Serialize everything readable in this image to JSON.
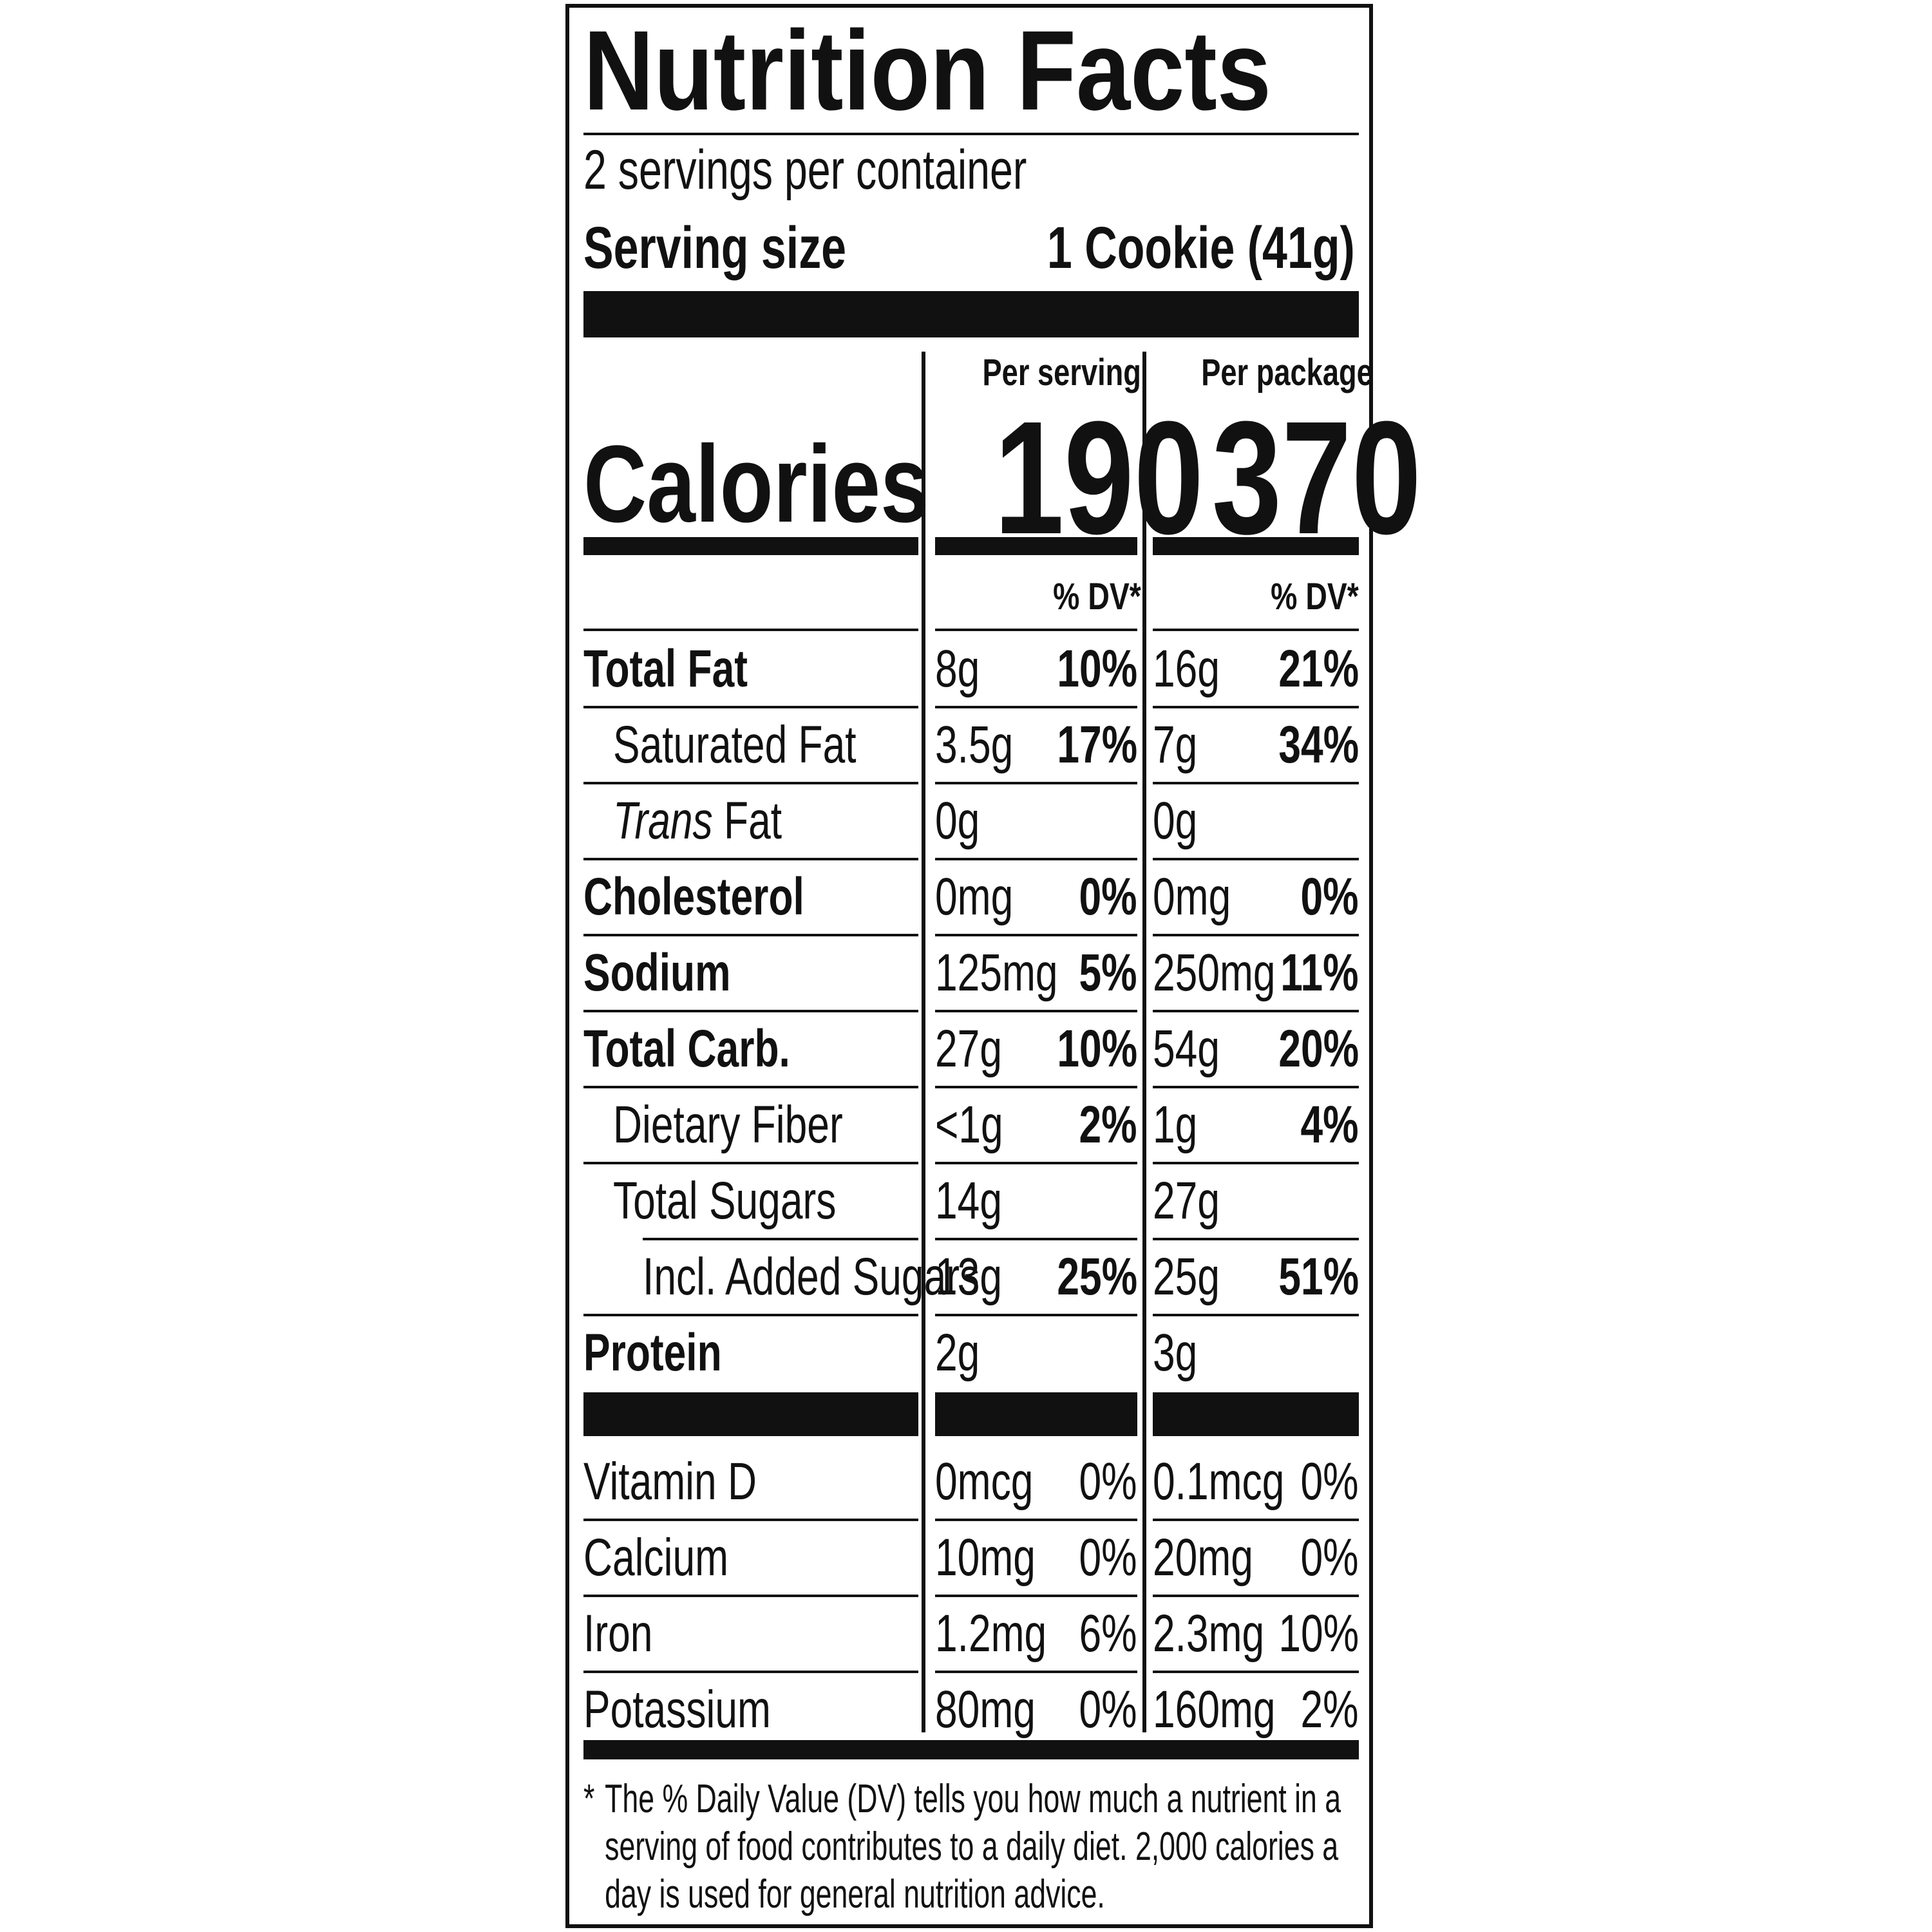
{
  "title": "Nutrition Facts",
  "servings_per_container": "2 servings per container",
  "serving_size": {
    "label": "Serving size",
    "value": "1 Cookie (41g)"
  },
  "columns": {
    "per_serving": {
      "header": "Per serving",
      "calories": "190",
      "dv_header": "% DV*"
    },
    "per_package": {
      "header": "Per package",
      "calories": "370",
      "dv_header": "% DV*"
    }
  },
  "calories_label": "Calories",
  "nutrients": [
    {
      "label": "Total Fat",
      "bold": true,
      "indent": 0,
      "serving_amount": "8g",
      "serving_dv": "10%",
      "package_amount": "16g",
      "package_dv": "21%"
    },
    {
      "label": "Saturated Fat",
      "bold": false,
      "indent": 1,
      "serving_amount": "3.5g",
      "serving_dv": "17%",
      "package_amount": "7g",
      "package_dv": "34%"
    },
    {
      "label_italic": "Trans",
      "label": " Fat",
      "bold": false,
      "indent": 1,
      "serving_amount": "0g",
      "serving_dv": "",
      "package_amount": "0g",
      "package_dv": ""
    },
    {
      "label": "Cholesterol",
      "bold": true,
      "indent": 0,
      "serving_amount": "0mg",
      "serving_dv": "0%",
      "package_amount": "0mg",
      "package_dv": "0%"
    },
    {
      "label": "Sodium",
      "bold": true,
      "indent": 0,
      "serving_amount": "125mg",
      "serving_dv": "5%",
      "package_amount": "250mg",
      "package_dv": "11%"
    },
    {
      "label": "Total Carb.",
      "bold": true,
      "indent": 0,
      "serving_amount": "27g",
      "serving_dv": "10%",
      "package_amount": "54g",
      "package_dv": "20%"
    },
    {
      "label": "Dietary Fiber",
      "bold": false,
      "indent": 1,
      "serving_amount": "<1g",
      "serving_dv": "2%",
      "package_amount": "1g",
      "package_dv": "4%"
    },
    {
      "label": "Total Sugars",
      "bold": false,
      "indent": 1,
      "serving_amount": "14g",
      "serving_dv": "",
      "package_amount": "27g",
      "package_dv": ""
    },
    {
      "label": "Incl. Added Sugars",
      "bold": false,
      "indent": 2,
      "serving_amount": "13g",
      "serving_dv": "25%",
      "package_amount": "25g",
      "package_dv": "51%"
    },
    {
      "label": "Protein",
      "bold": true,
      "indent": 0,
      "serving_amount": "2g",
      "serving_dv": "",
      "package_amount": "3g",
      "package_dv": ""
    }
  ],
  "vitamins": [
    {
      "label": "Vitamin D",
      "serving_amount": "0mcg",
      "serving_dv": "0%",
      "package_amount": "0.1mcg",
      "package_dv": "0%"
    },
    {
      "label": "Calcium",
      "serving_amount": "10mg",
      "serving_dv": "0%",
      "package_amount": "20mg",
      "package_dv": "0%"
    },
    {
      "label": "Iron",
      "serving_amount": "1.2mg",
      "serving_dv": "6%",
      "package_amount": "2.3mg",
      "package_dv": "10%"
    },
    {
      "label": "Potassium",
      "serving_amount": "80mg",
      "serving_dv": "0%",
      "package_amount": "160mg",
      "package_dv": "2%"
    }
  ],
  "footnote": {
    "marker": "*",
    "text": "The % Daily Value (DV) tells you how much a nutrient in a serving of food contributes to a daily diet. 2,000 calories a day is used for general nutrition advice."
  }
}
